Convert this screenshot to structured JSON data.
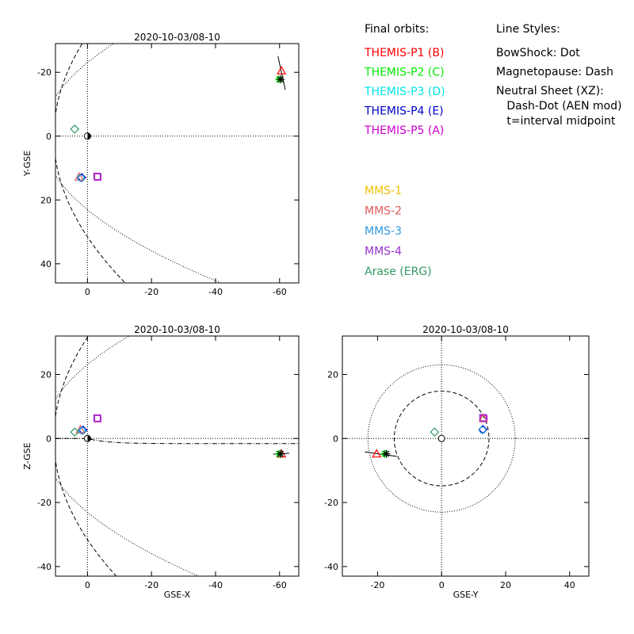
{
  "legend": {
    "orbits_title": "Final orbits:",
    "styles_title": "Line Styles:",
    "probes": [
      {
        "label": "THEMIS-P1 (B)",
        "color": "#ff0000"
      },
      {
        "label": "THEMIS-P2 (C)",
        "color": "#00ee00"
      },
      {
        "label": "THEMIS-P3 (D)",
        "color": "#00e5e5"
      },
      {
        "label": "THEMIS-P4 (E)",
        "color": "#0000cc"
      },
      {
        "label": "THEMIS-P5 (A)",
        "color": "#cc00cc"
      }
    ],
    "styles": [
      "BowShock: Dot",
      "Magnetopause: Dash",
      "Neutral Sheet (XZ):",
      "  Dash-Dot (AEN mod)",
      "  t=interval midpoint"
    ],
    "missions": [
      {
        "label": "MMS-1",
        "color": "#f0c000"
      },
      {
        "label": "MMS-2",
        "color": "#e05a5a"
      },
      {
        "label": "MMS-3",
        "color": "#3399dd"
      },
      {
        "label": "MMS-4",
        "color": "#9933cc"
      },
      {
        "label": "Arase (ERG)",
        "color": "#339966"
      }
    ]
  },
  "chart_data": [
    {
      "type": "scatter",
      "id": "xy",
      "title": "2020-10-03/08-10",
      "xlabel": "",
      "ylabel": "Y-GSE",
      "xlim": [
        10,
        -66
      ],
      "ylim": [
        -29,
        46
      ],
      "y_inverted": true,
      "xticks": [
        0,
        -20,
        -40,
        -60
      ],
      "yticks": [
        -20,
        0,
        20,
        40
      ],
      "points": [
        {
          "name": "THEMIS-P1 (B)",
          "x": -60.6,
          "y": -20.5,
          "marker": "triangle",
          "color": "#ff0000"
        },
        {
          "name": "THEMIS-P2 (C)",
          "x": -59.8,
          "y": -17.8,
          "marker": "asterisk",
          "color": "#00ee00"
        },
        {
          "name": "THEMIS-P3 (D)",
          "x": 2.2,
          "y": 13.0,
          "marker": "circle",
          "color": "#00e5e5"
        },
        {
          "name": "THEMIS-P4 (E)",
          "x": 1.8,
          "y": 13.0,
          "marker": "diamond",
          "color": "#0000cc"
        },
        {
          "name": "THEMIS-P5 (A)",
          "x": -3.2,
          "y": 12.8,
          "marker": "square",
          "color": "#cc00cc"
        },
        {
          "name": "MMS-2",
          "x": 2.6,
          "y": 12.8,
          "marker": "triangle",
          "color": "#e05a5a"
        },
        {
          "name": "MMS-3",
          "x": 2.0,
          "y": 13.2,
          "marker": "circle",
          "color": "#3399dd"
        },
        {
          "name": "MMS-4",
          "x": -3.0,
          "y": 12.6,
          "marker": "square",
          "color": "#9933cc"
        },
        {
          "name": "Arase (ERG)",
          "x": 4.0,
          "y": -2.2,
          "marker": "diamond",
          "color": "#339966"
        }
      ]
    },
    {
      "type": "scatter",
      "id": "xz",
      "title": "2020-10-03/08-10",
      "xlabel": "GSE-X",
      "ylabel": "Z-GSE",
      "xlim": [
        10,
        -66
      ],
      "ylim": [
        -43,
        32
      ],
      "xticks": [
        0,
        -20,
        -40,
        -60
      ],
      "yticks": [
        -40,
        -20,
        0,
        20
      ],
      "points": [
        {
          "name": "THEMIS-P1 (B)",
          "x": -60.6,
          "y": -4.8,
          "marker": "triangle",
          "color": "#ff0000"
        },
        {
          "name": "THEMIS-P2 (C)",
          "x": -59.8,
          "y": -4.8,
          "marker": "asterisk",
          "color": "#00ee00"
        },
        {
          "name": "THEMIS-P3 (D)",
          "x": 1.8,
          "y": 2.6,
          "marker": "circle",
          "color": "#00e5e5"
        },
        {
          "name": "THEMIS-P4 (E)",
          "x": 1.4,
          "y": 2.6,
          "marker": "diamond",
          "color": "#0000cc"
        },
        {
          "name": "THEMIS-P5 (A)",
          "x": -3.2,
          "y": 6.2,
          "marker": "square",
          "color": "#cc00cc"
        },
        {
          "name": "MMS-2",
          "x": 2.2,
          "y": 2.8,
          "marker": "triangle",
          "color": "#e05a5a"
        },
        {
          "name": "MMS-3",
          "x": 1.6,
          "y": 2.4,
          "marker": "circle",
          "color": "#3399dd"
        },
        {
          "name": "MMS-4",
          "x": -3.0,
          "y": 6.4,
          "marker": "square",
          "color": "#9933cc"
        },
        {
          "name": "Arase (ERG)",
          "x": 4.0,
          "y": 2.0,
          "marker": "diamond",
          "color": "#339966"
        }
      ]
    },
    {
      "type": "scatter",
      "id": "yz",
      "title": "2020-10-03/08-10",
      "xlabel": "GSE-Y",
      "ylabel": "",
      "xlim": [
        -31,
        46
      ],
      "ylim": [
        -43,
        32
      ],
      "xticks": [
        -20,
        0,
        20,
        40
      ],
      "yticks": [
        -40,
        -20,
        0,
        20
      ],
      "points": [
        {
          "name": "THEMIS-P1 (B)",
          "x": -20.3,
          "y": -4.8,
          "marker": "triangle",
          "color": "#ff0000"
        },
        {
          "name": "THEMIS-P2 (C)",
          "x": -17.8,
          "y": -4.8,
          "marker": "asterisk",
          "color": "#00ee00"
        },
        {
          "name": "THEMIS-P3 (D)",
          "x": 12.9,
          "y": 2.8,
          "marker": "circle",
          "color": "#00e5e5"
        },
        {
          "name": "THEMIS-P4 (E)",
          "x": 12.9,
          "y": 2.8,
          "marker": "diamond",
          "color": "#0000cc"
        },
        {
          "name": "THEMIS-P5 (A)",
          "x": 13.2,
          "y": 6.2,
          "marker": "square",
          "color": "#cc00cc"
        },
        {
          "name": "MMS-2",
          "x": 13.0,
          "y": 6.3,
          "marker": "triangle",
          "color": "#e05a5a"
        },
        {
          "name": "MMS-3",
          "x": 12.8,
          "y": 2.6,
          "marker": "circle",
          "color": "#3399dd"
        },
        {
          "name": "MMS-4",
          "x": 12.9,
          "y": 6.5,
          "marker": "square",
          "color": "#9933cc"
        },
        {
          "name": "Arase (ERG)",
          "x": -2.2,
          "y": 2.0,
          "marker": "diamond",
          "color": "#339966"
        }
      ]
    }
  ]
}
